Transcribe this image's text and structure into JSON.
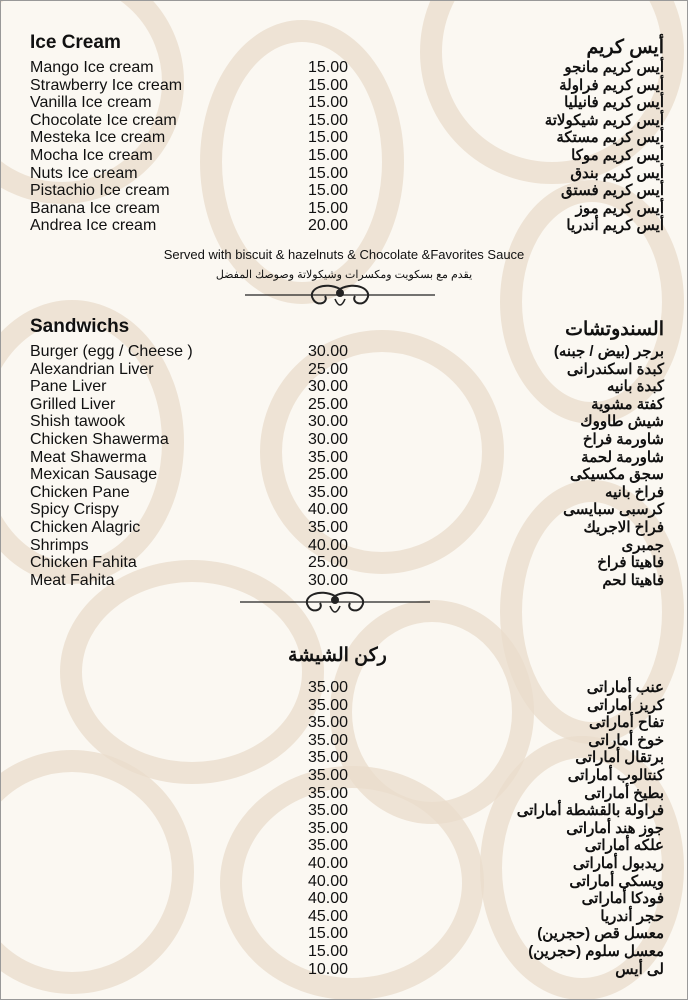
{
  "ice_cream": {
    "title_en": "Ice Cream",
    "title_ar": "أيس كريم",
    "items": [
      {
        "en": "Mango Ice cream",
        "price": "15.00",
        "ar": "أيس كريم مانجو"
      },
      {
        "en": "Strawberry Ice cream",
        "price": "15.00",
        "ar": "أيس كريم فراولة"
      },
      {
        "en": "Vanilla Ice cream",
        "price": "15.00",
        "ar": "أيس كريم فانيليا"
      },
      {
        "en": "Chocolate Ice cream",
        "price": "15.00",
        "ar": "أيس كريم شيكولاتة"
      },
      {
        "en": "Mesteka Ice cream",
        "price": "15.00",
        "ar": "أيس كريم مستكة"
      },
      {
        "en": "Mocha Ice cream",
        "price": "15.00",
        "ar": "أيس كريم موكا"
      },
      {
        "en": "Nuts Ice cream",
        "price": "15.00",
        "ar": "أيس كريم بندق"
      },
      {
        "en": "Pistachio Ice cream",
        "price": "15.00",
        "ar": "أيس كريم فستق"
      },
      {
        "en": "Banana Ice cream",
        "price": "15.00",
        "ar": "أيس كريم موز"
      },
      {
        "en": "Andrea Ice cream",
        "price": "20.00",
        "ar": "أيس كريم أندريا"
      }
    ],
    "note_en": "Served with biscuit & hazelnuts & Chocolate &Favorites Sauce",
    "note_ar": "يقدم مع بسكويت ومكسرات وشيكولاتة وصوصك المفضل"
  },
  "sandwiches": {
    "title_en": "Sandwichs",
    "title_ar": "السندوتشات",
    "items": [
      {
        "en": "Burger (egg / Cheese )",
        "price": "30.00",
        "ar": "برجر (بيض / جبنه)"
      },
      {
        "en": "Alexandrian Liver",
        "price": "25.00",
        "ar": "كبدة اسكندرانى"
      },
      {
        "en": "Pane Liver",
        "price": "30.00",
        "ar": "كبدة بانيه"
      },
      {
        "en": "Grilled Liver",
        "price": "25.00",
        "ar": "كفتة مشوية"
      },
      {
        "en": "Shish tawook",
        "price": "30.00",
        "ar": "شيش طاووك"
      },
      {
        "en": "Chicken Shawerma",
        "price": "30.00",
        "ar": "شاورمة فراخ"
      },
      {
        "en": "Meat Shawerma",
        "price": "35.00",
        "ar": "شاورمة لحمة"
      },
      {
        "en": "Mexican Sausage",
        "price": "25.00",
        "ar": "سجق مكسيكى"
      },
      {
        "en": "Chicken Pane",
        "price": "35.00",
        "ar": "فراخ بانيه"
      },
      {
        "en": "Spicy Crispy",
        "price": "40.00",
        "ar": "كرسبى سبايسى"
      },
      {
        "en": "Chicken Alagric",
        "price": "35.00",
        "ar": "فراخ الاجريك"
      },
      {
        "en": "Shrimps",
        "price": "40.00",
        "ar": "جمبرى"
      },
      {
        "en": "Chicken Fahita",
        "price": "25.00",
        "ar": "فاهيتا فراخ"
      },
      {
        "en": "Meat Fahita",
        "price": "30.00",
        "ar": "فاهيتا لحم"
      }
    ]
  },
  "shisha": {
    "title_ar": "ركن الشيشة",
    "items": [
      {
        "price": "35.00",
        "ar": "عنب أماراتى"
      },
      {
        "price": "35.00",
        "ar": "كريز أماراتى"
      },
      {
        "price": "35.00",
        "ar": "تفاح أماراتى"
      },
      {
        "price": "35.00",
        "ar": "خوخ أماراتى"
      },
      {
        "price": "35.00",
        "ar": "برتقال أماراتى"
      },
      {
        "price": "35.00",
        "ar": "كنتالوب أماراتى"
      },
      {
        "price": "35.00",
        "ar": "بطيخ أماراتى"
      },
      {
        "price": "35.00",
        "ar": "فراولة بالقشطة أماراتى"
      },
      {
        "price": "35.00",
        "ar": "جوز هند أماراتى"
      },
      {
        "price": "35.00",
        "ar": "علكه أماراتى"
      },
      {
        "price": "40.00",
        "ar": "ريدبول أماراتى"
      },
      {
        "price": "40.00",
        "ar": "ويسكى أماراتى"
      },
      {
        "price": "40.00",
        "ar": "فودكا أماراتى"
      },
      {
        "price": "45.00",
        "ar": "حجر أندريا"
      },
      {
        "price": "15.00",
        "ar": "معسل قص (حجرين)"
      },
      {
        "price": "15.00",
        "ar": "معسل سلوم (حجرين)"
      },
      {
        "price": "10.00",
        "ar": "لى أيس"
      }
    ]
  },
  "colors": {
    "background": "#fbf8f2",
    "pattern": "#e9dccb",
    "text": "#111111"
  },
  "icons": [
    "ornament-divider"
  ]
}
